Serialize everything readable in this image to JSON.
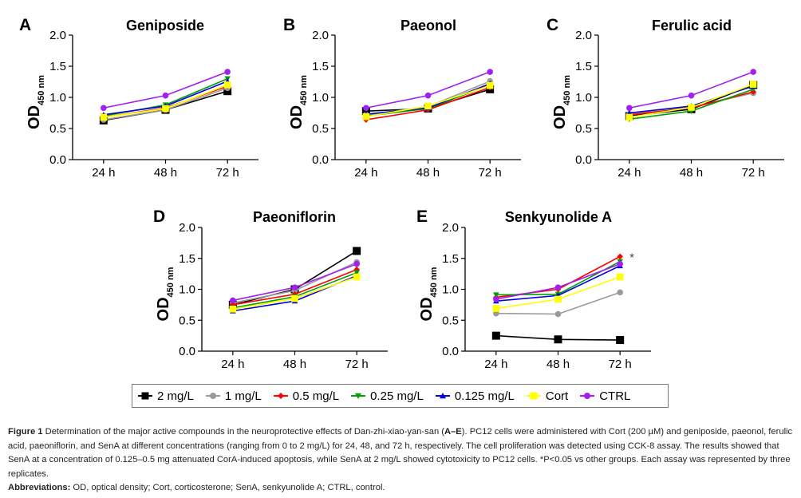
{
  "chart_data": {
    "type": "line",
    "x": [
      "24 h",
      "48 h",
      "72 h"
    ],
    "ylabel": "OD",
    "ylabel_subscript": "450 nm",
    "ylim": [
      0,
      2.0
    ],
    "yticks": [
      "0.0",
      "0.5",
      "1.0",
      "1.5",
      "2.0"
    ],
    "grid": false,
    "legend": {
      "placement": "bottom-center",
      "entries": [
        {
          "name": "2 mg/L",
          "color": "#000000",
          "marker": "square"
        },
        {
          "name": "1 mg/L",
          "color": "#999999",
          "marker": "circle"
        },
        {
          "name": "0.5 mg/L",
          "color": "#ff0000",
          "marker": "diamond"
        },
        {
          "name": "0.25 mg/L",
          "color": "#00a000",
          "marker": "triangle-down"
        },
        {
          "name": "0.125 mg/L",
          "color": "#0000e0",
          "marker": "triangle-up"
        },
        {
          "name": "Cort",
          "color": "#ffff00",
          "marker": "square"
        },
        {
          "name": "CTRL",
          "color": "#a020f0",
          "marker": "circle"
        }
      ]
    },
    "panels": [
      {
        "letter": "A",
        "title": "Geniposide",
        "annotation": "",
        "series": [
          {
            "name": "2 mg/L",
            "values": [
              0.63,
              0.8,
              1.1
            ]
          },
          {
            "name": "1 mg/L",
            "values": [
              0.64,
              0.8,
              1.15
            ]
          },
          {
            "name": "0.5 mg/L",
            "values": [
              0.68,
              0.83,
              1.18
            ]
          },
          {
            "name": "0.25 mg/L",
            "values": [
              0.7,
              0.88,
              1.3
            ]
          },
          {
            "name": "0.125 mg/L",
            "values": [
              0.72,
              0.86,
              1.26
            ]
          },
          {
            "name": "Cort",
            "values": [
              0.68,
              0.82,
              1.2
            ]
          },
          {
            "name": "CTRL",
            "values": [
              0.83,
              1.03,
              1.41
            ]
          }
        ]
      },
      {
        "letter": "B",
        "title": "Paeonol",
        "annotation": "",
        "series": [
          {
            "name": "2 mg/L",
            "values": [
              0.78,
              0.82,
              1.13
            ]
          },
          {
            "name": "1 mg/L",
            "values": [
              0.72,
              0.85,
              1.26
            ]
          },
          {
            "name": "0.5 mg/L",
            "values": [
              0.64,
              0.8,
              1.16
            ]
          },
          {
            "name": "0.25 mg/L",
            "values": [
              0.7,
              0.82,
              1.2
            ]
          },
          {
            "name": "0.125 mg/L",
            "values": [
              0.73,
              0.83,
              1.22
            ]
          },
          {
            "name": "Cort",
            "values": [
              0.69,
              0.86,
              1.19
            ]
          },
          {
            "name": "CTRL",
            "values": [
              0.83,
              1.03,
              1.41
            ]
          }
        ]
      },
      {
        "letter": "C",
        "title": "Ferulic acid",
        "annotation": "",
        "series": [
          {
            "name": "2 mg/L",
            "values": [
              0.7,
              0.81,
              1.2
            ]
          },
          {
            "name": "1 mg/L",
            "values": [
              0.73,
              0.84,
              1.07
            ]
          },
          {
            "name": "0.5 mg/L",
            "values": [
              0.72,
              0.83,
              1.09
            ]
          },
          {
            "name": "0.25 mg/L",
            "values": [
              0.65,
              0.78,
              1.13
            ]
          },
          {
            "name": "0.125 mg/L",
            "values": [
              0.75,
              0.86,
              1.18
            ]
          },
          {
            "name": "Cort",
            "values": [
              0.68,
              0.84,
              1.21
            ]
          },
          {
            "name": "CTRL",
            "values": [
              0.83,
              1.03,
              1.41
            ]
          }
        ]
      },
      {
        "letter": "D",
        "title": "Paeoniflorin",
        "annotation": "",
        "series": [
          {
            "name": "2 mg/L",
            "values": [
              0.75,
              1.0,
              1.62
            ]
          },
          {
            "name": "1 mg/L",
            "values": [
              0.78,
              0.98,
              1.44
            ]
          },
          {
            "name": "0.5 mg/L",
            "values": [
              0.75,
              0.92,
              1.32
            ]
          },
          {
            "name": "0.25 mg/L",
            "values": [
              0.7,
              0.88,
              1.27
            ]
          },
          {
            "name": "0.125 mg/L",
            "values": [
              0.65,
              0.81,
              1.22
            ]
          },
          {
            "name": "Cort",
            "values": [
              0.68,
              0.85,
              1.2
            ]
          },
          {
            "name": "CTRL",
            "values": [
              0.82,
              1.03,
              1.41
            ]
          }
        ]
      },
      {
        "letter": "E",
        "title": "Senkyunolide A",
        "annotation": "*",
        "series": [
          {
            "name": "2 mg/L",
            "values": [
              0.25,
              0.19,
              0.18
            ]
          },
          {
            "name": "1 mg/L",
            "values": [
              0.61,
              0.6,
              0.95
            ]
          },
          {
            "name": "0.5 mg/L",
            "values": [
              0.87,
              1.0,
              1.53
            ]
          },
          {
            "name": "0.25 mg/L",
            "values": [
              0.91,
              0.92,
              1.45
            ]
          },
          {
            "name": "0.125 mg/L",
            "values": [
              0.81,
              0.9,
              1.38
            ]
          },
          {
            "name": "Cort",
            "values": [
              0.69,
              0.84,
              1.2
            ]
          },
          {
            "name": "CTRL",
            "values": [
              0.84,
              1.03,
              1.41
            ]
          }
        ]
      }
    ]
  },
  "caption": {
    "figure_label": "Figure 1",
    "text_part1": " Determination of the major active compounds in the neuroprotective effects of Dan-zhi-xiao-yan-san (",
    "range_label": "A–E",
    "text_part2": "). PC12 cells were administered with Cort (200 µM) and geniposide, paeonol, ferulic acid, paeoniflorin, and SenA at different concentrations (ranging from 0 to 2 mg/L) for 24, 48, and 72 h, respectively. The cell proliferation was detected using CCK-8 assay. The results showed that SenA at a concentration of 0.125–0.5 mg attenuated CorA-induced apoptosis, while SenA at 2 mg/L showed cytotoxicity to PC12 cells. *P<0.05 vs other groups. Each assay was represented by three replicates.",
    "abbreviations_label": "Abbreviations:",
    "abbreviations_text": " OD, optical density; Cort, corticosterone; SenA, senkyunolide A; CTRL, control."
  }
}
